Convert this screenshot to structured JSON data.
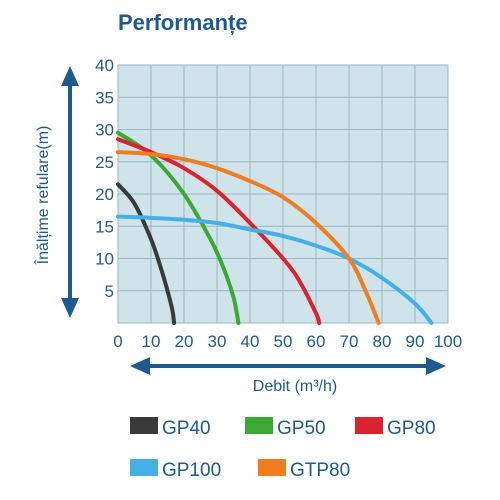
{
  "chart_data": {
    "type": "line",
    "title": "Performanțe",
    "xlabel": "Debit (m³/h)",
    "ylabel": "Înălțime refulare(m)",
    "xlim": [
      0,
      100
    ],
    "ylim": [
      0,
      40
    ],
    "x_ticks": [
      "0",
      "10",
      "20",
      "30",
      "40",
      "50",
      "60",
      "70",
      "80",
      "90",
      "100"
    ],
    "y_ticks": [
      "5",
      "10",
      "15",
      "20",
      "25",
      "30",
      "35",
      "40"
    ],
    "grid": true,
    "legend_position": "bottom",
    "series": [
      {
        "name": "GP40",
        "color": "#3a3a3a",
        "x": [
          0,
          5,
          10,
          13,
          15,
          16.5,
          17
        ],
        "y": [
          21.5,
          18.5,
          13,
          8.5,
          5,
          2,
          0
        ]
      },
      {
        "name": "GP50",
        "color": "#3aaa35",
        "x": [
          0,
          10,
          20,
          28,
          32,
          35,
          36,
          36.5
        ],
        "y": [
          29.5,
          26,
          20,
          13,
          8.5,
          4,
          1.5,
          0
        ]
      },
      {
        "name": "GP80",
        "color": "#d9232d",
        "x": [
          0,
          10,
          20,
          30,
          40,
          50,
          55,
          60,
          61
        ],
        "y": [
          28.5,
          26.5,
          24,
          20.5,
          15.5,
          10,
          6.5,
          1.5,
          0
        ]
      },
      {
        "name": "GP100",
        "color": "#45b0e6",
        "x": [
          0,
          10,
          20,
          30,
          40,
          50,
          60,
          70,
          80,
          90,
          95
        ],
        "y": [
          16.5,
          16.3,
          16,
          15.5,
          14.5,
          13.5,
          12,
          10,
          7,
          3,
          0
        ]
      },
      {
        "name": "GTP80",
        "color": "#ef7d22",
        "x": [
          0,
          10,
          20,
          30,
          40,
          50,
          60,
          70,
          75,
          79
        ],
        "y": [
          26.5,
          26.2,
          25.4,
          24,
          22,
          19.5,
          15.5,
          10,
          5,
          0
        ]
      }
    ]
  }
}
